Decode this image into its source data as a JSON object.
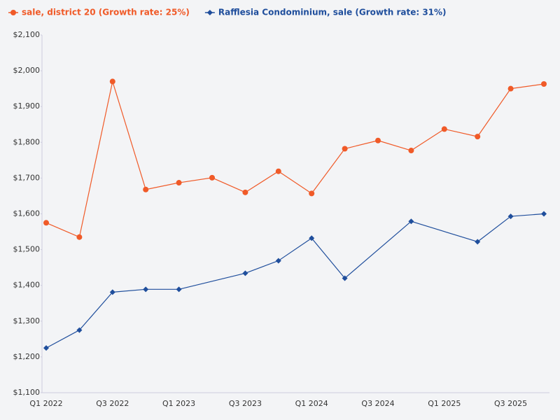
{
  "chart_data": {
    "type": "line",
    "categories": [
      "Q1 2022",
      null,
      "Q3 2022",
      null,
      "Q1 2023",
      null,
      "Q3 2023",
      null,
      "Q1 2024",
      null,
      "Q3 2024",
      null,
      "Q1 2025",
      null,
      "Q3 2025",
      null
    ],
    "series": [
      {
        "name": "sale, district 20 (Growth rate: 25%)",
        "color": "#f05a28",
        "marker": "circle",
        "values": [
          1575,
          1535,
          1970,
          1668,
          1687,
          1701,
          1660,
          1719,
          1657,
          1782,
          1805,
          1777,
          1837,
          1816,
          1950,
          1963
        ]
      },
      {
        "name": "Rafflesia Condominium, sale (Growth rate: 31%)",
        "color": "#1f4e9c",
        "marker": "diamond",
        "values": [
          1225,
          1275,
          1381,
          1389,
          1389,
          null,
          1434,
          1469,
          1532,
          1420,
          null,
          1579,
          null,
          1522,
          1593,
          1600
        ]
      }
    ],
    "ylim": [
      1100,
      2100
    ],
    "yticks": [
      {
        "value": 1100,
        "label": "$1,100"
      },
      {
        "value": 1200,
        "label": "$1,200"
      },
      {
        "value": 1300,
        "label": "$1,300"
      },
      {
        "value": 1400,
        "label": "$1,400"
      },
      {
        "value": 1500,
        "label": "$1,500"
      },
      {
        "value": 1600,
        "label": "$1,600"
      },
      {
        "value": 1700,
        "label": "$1,700"
      },
      {
        "value": 1800,
        "label": "$1,800"
      },
      {
        "value": 1900,
        "label": "$1,900"
      },
      {
        "value": 2000,
        "label": "$2,000"
      },
      {
        "value": 2100,
        "label": "$2,100"
      }
    ],
    "grid": false,
    "legend": "top"
  }
}
